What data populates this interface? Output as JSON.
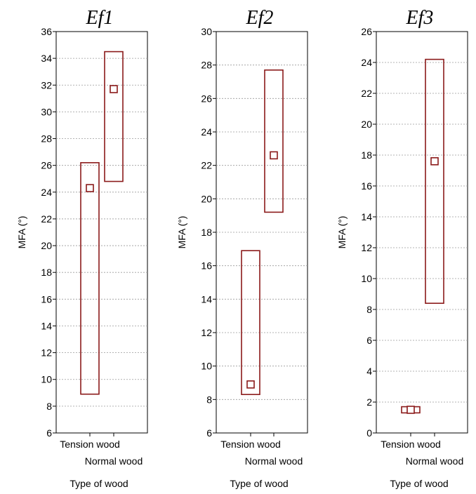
{
  "colors": {
    "series": "#8b1a1a",
    "grid": "#9a9a9a",
    "axis": "#000000"
  },
  "chart_data": [
    {
      "type": "box",
      "title": "Ef1",
      "categories": [
        "Tension wood",
        "Normal wood"
      ],
      "xlabel": "Type of wood",
      "ylabel": "MFA (°)",
      "ylim": [
        6,
        36
      ],
      "yticks": [
        6,
        8,
        10,
        12,
        14,
        16,
        18,
        20,
        22,
        24,
        26,
        28,
        30,
        32,
        34,
        36
      ],
      "grid": true,
      "series": [
        {
          "category": "Tension wood",
          "low": 8.9,
          "high": 26.2,
          "mean": 24.3
        },
        {
          "category": "Normal wood",
          "low": 24.8,
          "high": 34.5,
          "mean": 31.7
        }
      ]
    },
    {
      "type": "box",
      "title": "Ef2",
      "categories": [
        "Tension wood",
        "Normal wood"
      ],
      "xlabel": "Type of wood",
      "ylabel": "MFA (°)",
      "ylim": [
        6,
        30
      ],
      "yticks": [
        6,
        8,
        10,
        12,
        14,
        16,
        18,
        20,
        22,
        24,
        26,
        28,
        30
      ],
      "grid": true,
      "series": [
        {
          "category": "Tension wood",
          "low": 8.3,
          "high": 16.9,
          "mean": 8.9
        },
        {
          "category": "Normal wood",
          "low": 19.2,
          "high": 27.7,
          "mean": 22.6
        }
      ]
    },
    {
      "type": "box",
      "title": "Ef3",
      "categories": [
        "Tension wood",
        "Normal wood"
      ],
      "xlabel": "Type of wood",
      "ylabel": "MFA (°)",
      "ylim": [
        0,
        26
      ],
      "yticks": [
        0,
        2,
        4,
        6,
        8,
        10,
        12,
        14,
        16,
        18,
        20,
        22,
        24,
        26
      ],
      "grid": true,
      "series": [
        {
          "category": "Tension wood",
          "low": 1.3,
          "high": 1.7,
          "mean": 1.5
        },
        {
          "category": "Normal wood",
          "low": 8.4,
          "high": 24.2,
          "mean": 17.6
        }
      ]
    }
  ]
}
